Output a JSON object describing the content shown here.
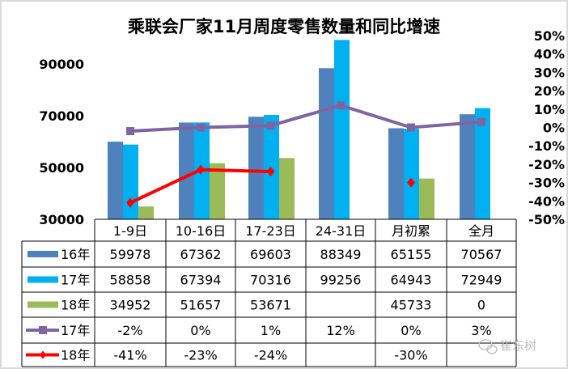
{
  "chart_data": {
    "type": "bar+line",
    "title": "乘联会厂家11月周度零售数量和同比增速",
    "categories": [
      "1-9日",
      "10-16日",
      "17-23日",
      "24-31日",
      "月初累",
      "全月"
    ],
    "left_axis": {
      "ylim": [
        30000,
        100000
      ],
      "ticks": [
        30000,
        50000,
        70000,
        90000
      ]
    },
    "right_axis": {
      "ylim": [
        -50,
        50
      ],
      "ticks": [
        "50%",
        "40%",
        "30%",
        "20%",
        "10%",
        "0%",
        "-10%",
        "-20%",
        "-30%",
        "-40%",
        "-50%"
      ]
    },
    "bar_series": [
      {
        "name": "16年",
        "color": "#4f81bd",
        "values": [
          59978,
          67362,
          69603,
          88349,
          65155,
          70567
        ],
        "labels": [
          "59978",
          "67362",
          "69603",
          "88349",
          "65155",
          "70567"
        ]
      },
      {
        "name": "17年",
        "color": "#00b0f0",
        "values": [
          58858,
          67394,
          70316,
          99256,
          64943,
          72949
        ],
        "labels": [
          "58858",
          "67394",
          "70316",
          "99256",
          "64943",
          "72949"
        ]
      },
      {
        "name": "18年",
        "color": "#9bbb59",
        "values": [
          34952,
          51657,
          53671,
          null,
          45733,
          0
        ],
        "labels": [
          "34952",
          "51657",
          "53671",
          "",
          "45733",
          "0"
        ]
      }
    ],
    "line_series": [
      {
        "name": "17年",
        "color": "#8064a2",
        "marker": "square",
        "values": [
          -2,
          0,
          1,
          12,
          0,
          3
        ],
        "labels": [
          "-2%",
          "0%",
          "1%",
          "12%",
          "0%",
          "3%"
        ]
      },
      {
        "name": "18年",
        "color": "#ff0000",
        "marker": "diamond",
        "values": [
          -41,
          -23,
          -24,
          null,
          -30,
          null
        ],
        "labels": [
          "-41%",
          "-23%",
          "-24%",
          "",
          "-30%",
          ""
        ]
      }
    ],
    "grid": false,
    "legend": "data-table"
  },
  "watermark": "崔东树"
}
